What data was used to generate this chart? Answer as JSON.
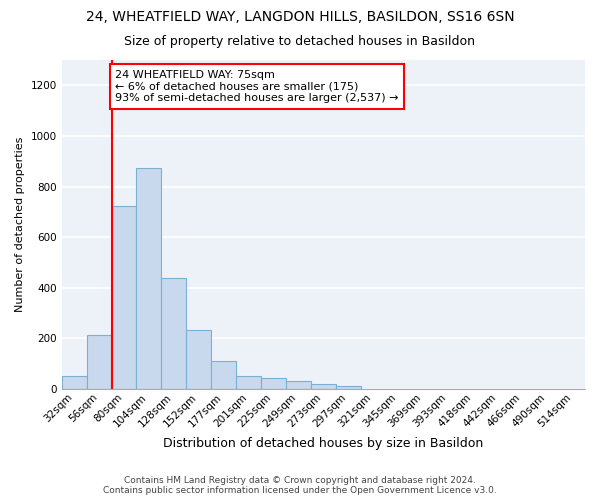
{
  "title1": "24, WHEATFIELD WAY, LANGDON HILLS, BASILDON, SS16 6SN",
  "title2": "Size of property relative to detached houses in Basildon",
  "xlabel": "Distribution of detached houses by size in Basildon",
  "ylabel": "Number of detached properties",
  "footnote1": "Contains HM Land Registry data © Crown copyright and database right 2024.",
  "footnote2": "Contains public sector information licensed under the Open Government Licence v3.0.",
  "bin_labels": [
    "32sqm",
    "56sqm",
    "80sqm",
    "104sqm",
    "128sqm",
    "152sqm",
    "177sqm",
    "201sqm",
    "225sqm",
    "249sqm",
    "273sqm",
    "297sqm",
    "321sqm",
    "345sqm",
    "369sqm",
    "393sqm",
    "418sqm",
    "442sqm",
    "466sqm",
    "490sqm",
    "514sqm"
  ],
  "bar_values": [
    50,
    215,
    725,
    875,
    440,
    235,
    110,
    50,
    45,
    30,
    20,
    10,
    0,
    0,
    0,
    0,
    0,
    0,
    0,
    0,
    0
  ],
  "bar_color": "#c9d9ed",
  "bar_edgecolor": "#7bafd4",
  "bar_linewidth": 0.8,
  "vline_bin_index": 2,
  "vline_color": "red",
  "vline_linewidth": 1.5,
  "annotation_text": "24 WHEATFIELD WAY: 75sqm\n← 6% of detached houses are smaller (175)\n93% of semi-detached houses are larger (2,537) →",
  "ylim": [
    0,
    1300
  ],
  "yticks": [
    0,
    200,
    400,
    600,
    800,
    1000,
    1200
  ],
  "background_color": "#edf2f9",
  "grid_color": "white",
  "title1_fontsize": 10,
  "title2_fontsize": 9,
  "xlabel_fontsize": 9,
  "ylabel_fontsize": 8,
  "tick_fontsize": 7.5,
  "annot_fontsize": 8
}
